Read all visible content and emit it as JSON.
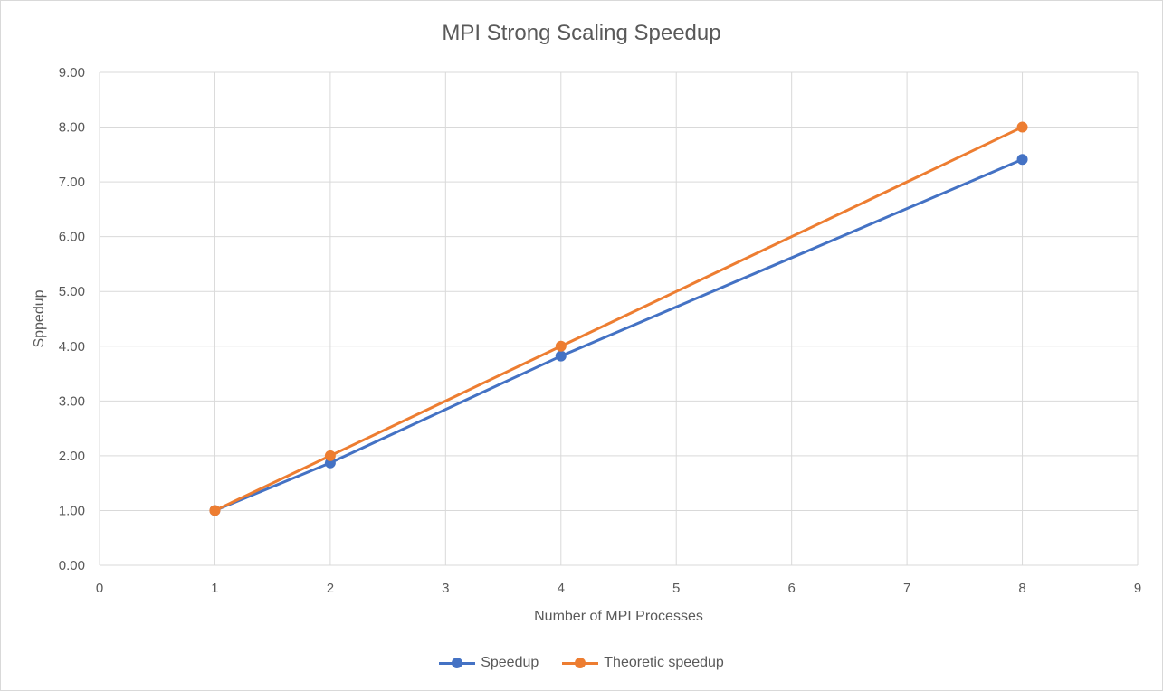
{
  "chart_data": {
    "type": "scatter",
    "title": "MPI Strong Scaling Speedup",
    "xlabel": "Number of MPI Processes",
    "ylabel": "Sppedup",
    "xlim": [
      0,
      9
    ],
    "ylim": [
      0,
      9
    ],
    "x_ticks": [
      "0",
      "1",
      "2",
      "3",
      "4",
      "5",
      "6",
      "7",
      "8",
      "9"
    ],
    "y_ticks": [
      "0.00",
      "1.00",
      "2.00",
      "3.00",
      "4.00",
      "5.00",
      "6.00",
      "7.00",
      "8.00",
      "9.00"
    ],
    "grid": true,
    "legend_position": "bottom",
    "series": [
      {
        "name": "Speedup",
        "color": "#4472c4",
        "x": [
          1,
          2,
          4,
          8
        ],
        "y": [
          1.0,
          1.87,
          3.82,
          7.41
        ]
      },
      {
        "name": "Theoretic speedup",
        "color": "#ed7d31",
        "x": [
          1,
          2,
          4,
          8
        ],
        "y": [
          1.0,
          2.0,
          4.0,
          8.0
        ]
      }
    ]
  }
}
